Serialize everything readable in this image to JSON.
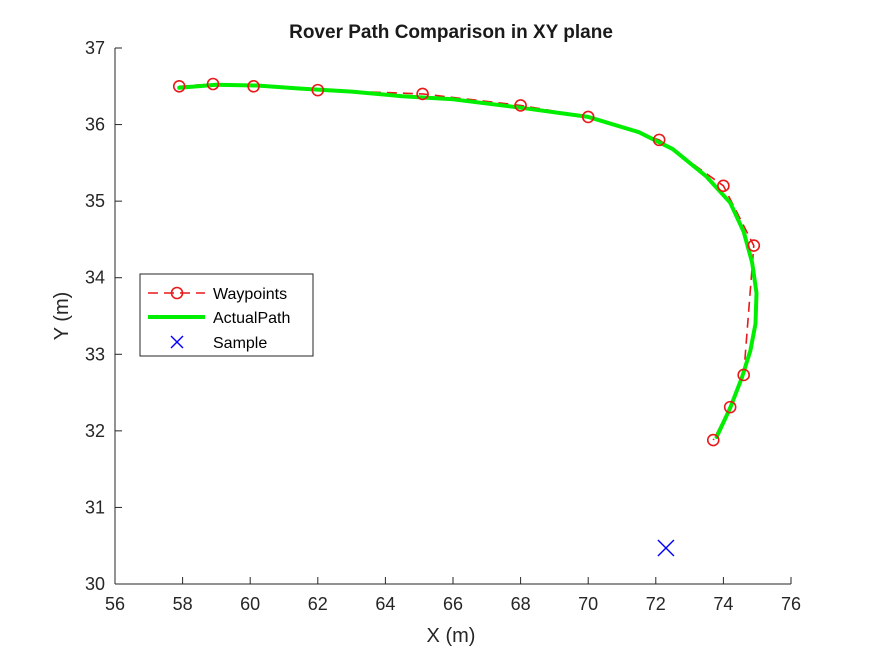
{
  "chart_data": {
    "type": "line",
    "title": "Rover Path Comparison in XY plane",
    "xlabel": "X (m)",
    "ylabel": "Y (m)",
    "xlim": [
      56,
      76
    ],
    "ylim": [
      30,
      37
    ],
    "xticks": [
      56,
      58,
      60,
      62,
      64,
      66,
      68,
      70,
      72,
      74,
      76
    ],
    "yticks": [
      30,
      31,
      32,
      33,
      34,
      35,
      36,
      37
    ],
    "xtick_labels": [
      "56",
      "58",
      "60",
      "62",
      "64",
      "66",
      "68",
      "70",
      "72",
      "74",
      "76"
    ],
    "ytick_labels": [
      "30",
      "31",
      "32",
      "33",
      "34",
      "35",
      "36",
      "37"
    ],
    "grid": false,
    "legend_position": "middle-left",
    "legend": [
      "Waypoints",
      "ActualPath",
      "Sample"
    ],
    "series": [
      {
        "name": "Waypoints",
        "style": "dashed-circle",
        "color": "#e8191a",
        "x": [
          57.9,
          58.9,
          60.1,
          62.0,
          65.1,
          68.0,
          70.0,
          72.1,
          74.0,
          74.9,
          74.6,
          74.2,
          73.7
        ],
        "y": [
          36.5,
          36.53,
          36.5,
          36.45,
          36.4,
          36.25,
          36.1,
          35.8,
          35.2,
          34.42,
          32.73,
          32.31,
          31.88
        ]
      },
      {
        "name": "ActualPath",
        "style": "solid",
        "color": "#00ee00",
        "x": [
          57.9,
          59.0,
          60.2,
          61.5,
          63.0,
          64.5,
          66.0,
          68.0,
          70.0,
          71.5,
          72.5,
          73.5,
          74.2,
          74.6,
          74.85,
          74.98,
          74.95,
          74.8,
          74.55,
          74.2,
          73.8
        ],
        "y": [
          36.48,
          36.52,
          36.51,
          36.47,
          36.43,
          36.37,
          36.33,
          36.22,
          36.1,
          35.9,
          35.68,
          35.32,
          34.98,
          34.6,
          34.2,
          33.8,
          33.4,
          33.05,
          32.7,
          32.3,
          31.92
        ]
      },
      {
        "name": "Sample",
        "style": "x-marker",
        "color": "#0000ff",
        "x": [
          72.3
        ],
        "y": [
          30.47
        ]
      }
    ]
  }
}
